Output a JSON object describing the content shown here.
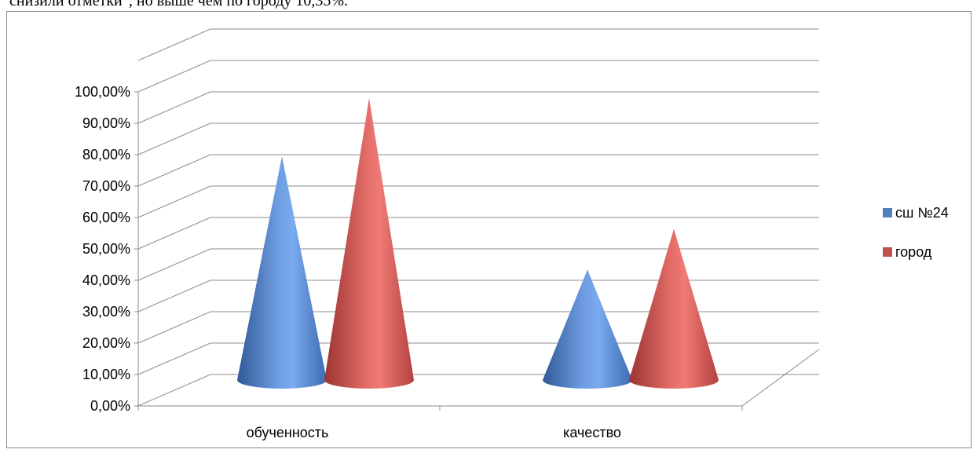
{
  "caption": "снизили отметки\", но выше чем по городу 10,35%.",
  "chart_data": {
    "type": "bar",
    "style": "3d-cone",
    "categories": [
      "обученность",
      "качество"
    ],
    "series": [
      {
        "name": "сш №24",
        "values": [
          0.77,
          0.38
        ],
        "color": "#4f81bd"
      },
      {
        "name": "город",
        "values": [
          0.97,
          0.52
        ],
        "color": "#c0504d"
      }
    ],
    "ylim": [
      0,
      1
    ],
    "yticks": [
      "0,00%",
      "10,00%",
      "20,00%",
      "30,00%",
      "40,00%",
      "50,00%",
      "60,00%",
      "70,00%",
      "80,00%",
      "90,00%",
      "100,00%"
    ],
    "grid": true,
    "legend": "right"
  }
}
